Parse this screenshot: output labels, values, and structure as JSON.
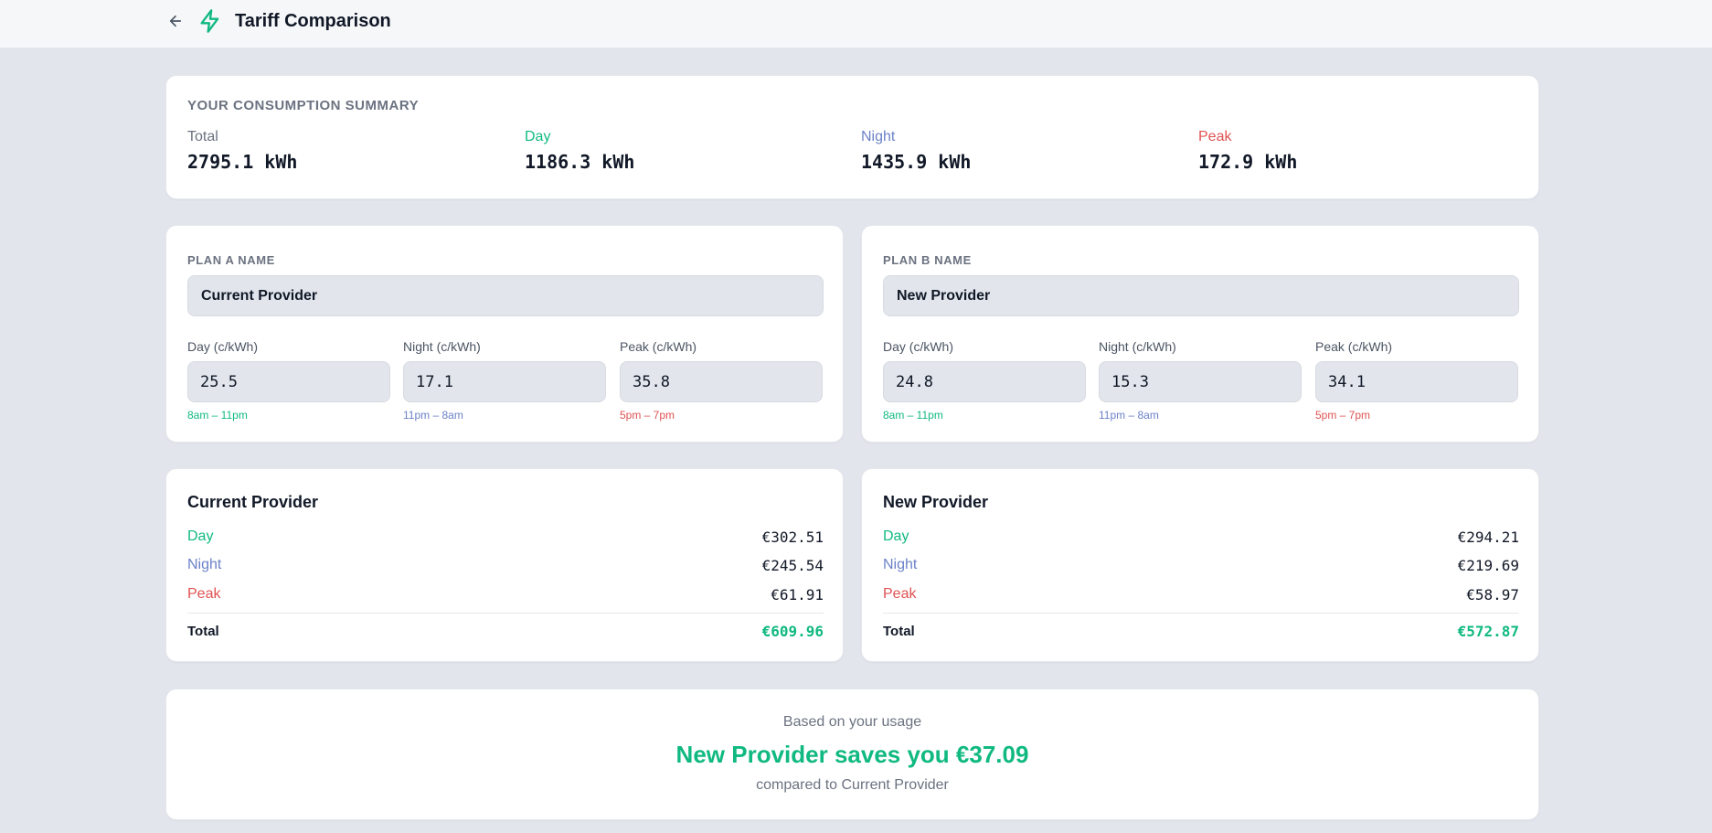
{
  "header": {
    "title": "Tariff Comparison",
    "back_icon": "arrow-left-icon",
    "logo_icon": "lightning-bolt-icon",
    "accent": "#10b981"
  },
  "summary": {
    "title": "YOUR CONSUMPTION SUMMARY",
    "stats": [
      {
        "label": "Total",
        "value": "2795.1 kWh",
        "color": "#6b7280"
      },
      {
        "label": "Day",
        "value": "1186.3 kWh",
        "color": "#10b981"
      },
      {
        "label": "Night",
        "value": "1435.9 kWh",
        "color": "#6b82c8"
      },
      {
        "label": "Peak",
        "value": "172.9 kWh",
        "color": "#e05252"
      }
    ]
  },
  "plans": [
    {
      "name_label": "PLAN A NAME",
      "name_value": "Current Provider",
      "rates": [
        {
          "label": "Day (c/kWh)",
          "value": "25.5",
          "hint": "8am – 11pm"
        },
        {
          "label": "Night (c/kWh)",
          "value": "17.1",
          "hint": "11pm – 8am"
        },
        {
          "label": "Peak (c/kWh)",
          "value": "35.8",
          "hint": "5pm – 7pm"
        }
      ]
    },
    {
      "name_label": "PLAN B NAME",
      "name_value": "New Provider",
      "rates": [
        {
          "label": "Day (c/kWh)",
          "value": "24.8",
          "hint": "8am – 11pm"
        },
        {
          "label": "Night (c/kWh)",
          "value": "15.3",
          "hint": "11pm – 8am"
        },
        {
          "label": "Peak (c/kWh)",
          "value": "34.1",
          "hint": "5pm – 7pm"
        }
      ]
    }
  ],
  "costs": [
    {
      "title": "Current Provider",
      "rows": [
        {
          "label": "Day",
          "amount": "€302.51"
        },
        {
          "label": "Night",
          "amount": "€245.54"
        },
        {
          "label": "Peak",
          "amount": "€61.91"
        }
      ],
      "total_label": "Total",
      "total_amount": "€609.96"
    },
    {
      "title": "New Provider",
      "rows": [
        {
          "label": "Day",
          "amount": "€294.21"
        },
        {
          "label": "Night",
          "amount": "€219.69"
        },
        {
          "label": "Peak",
          "amount": "€58.97"
        }
      ],
      "total_label": "Total",
      "total_amount": "€572.87"
    }
  ],
  "result": {
    "pre": "Based on your usage",
    "main": "New Provider saves you €37.09",
    "post": "compared to Current Provider"
  }
}
